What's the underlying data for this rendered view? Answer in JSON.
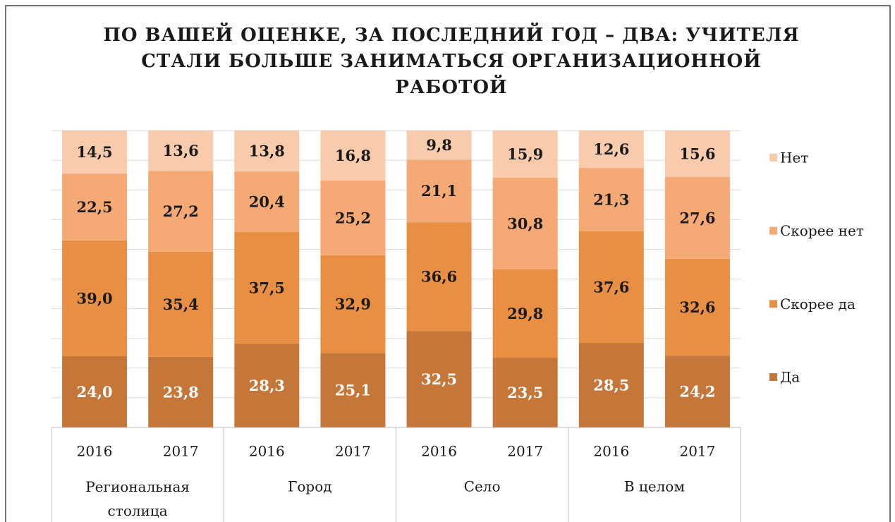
{
  "chart_data": {
    "type": "stacked_bar",
    "title": "ПО ВАШЕЙ ОЦЕНКЕ, ЗА ПОСЛЕДНИЙ ГОД – ДВА: УЧИТЕЛЯ СТАЛИ БОЛЬШЕ ЗАНИМАТЬСЯ ОРГАНИЗАЦИОННОЙ РАБОТОЙ",
    "categories": [
      "2016",
      "2017",
      "2016",
      "2017",
      "2016",
      "2017",
      "2016",
      "2017"
    ],
    "groups": [
      "Региональная столица",
      "Город",
      "Село",
      "В целом"
    ],
    "series": [
      {
        "name": "Да",
        "color": "#c5773a",
        "values": [
          24.0,
          23.8,
          28.3,
          25.1,
          32.5,
          23.5,
          28.5,
          24.2
        ],
        "value_labels": [
          "24,0",
          "23,8",
          "28,3",
          "25,1",
          "32,5",
          "23,5",
          "28,5",
          "24,2"
        ]
      },
      {
        "name": "Скорее да",
        "color": "#e88f44",
        "values": [
          39.0,
          35.4,
          37.5,
          32.9,
          36.6,
          29.8,
          37.6,
          32.6
        ],
        "value_labels": [
          "39,0",
          "35,4",
          "37,5",
          "32,9",
          "36,6",
          "29,8",
          "37,6",
          "32,6"
        ]
      },
      {
        "name": "Скорее нет",
        "color": "#f5aa76",
        "values": [
          22.5,
          27.2,
          20.4,
          25.2,
          21.1,
          30.8,
          21.3,
          27.6
        ],
        "value_labels": [
          "22,5",
          "27,2",
          "20,4",
          "25,2",
          "21,1",
          "30,8",
          "21,3",
          "27,6"
        ]
      },
      {
        "name": "Нет",
        "color": "#f9cbad",
        "values": [
          14.5,
          13.6,
          13.8,
          16.8,
          9.8,
          15.9,
          12.6,
          15.6
        ],
        "value_labels": [
          "14,5",
          "13,6",
          "13,8",
          "16,8",
          "9,8",
          "15,9",
          "12,6",
          "15,6"
        ]
      }
    ],
    "ylim": [
      0,
      100
    ],
    "yticks": [
      0,
      10,
      20,
      30,
      40,
      50,
      60,
      70,
      80,
      90,
      100
    ],
    "grid": true,
    "legend": "right"
  }
}
